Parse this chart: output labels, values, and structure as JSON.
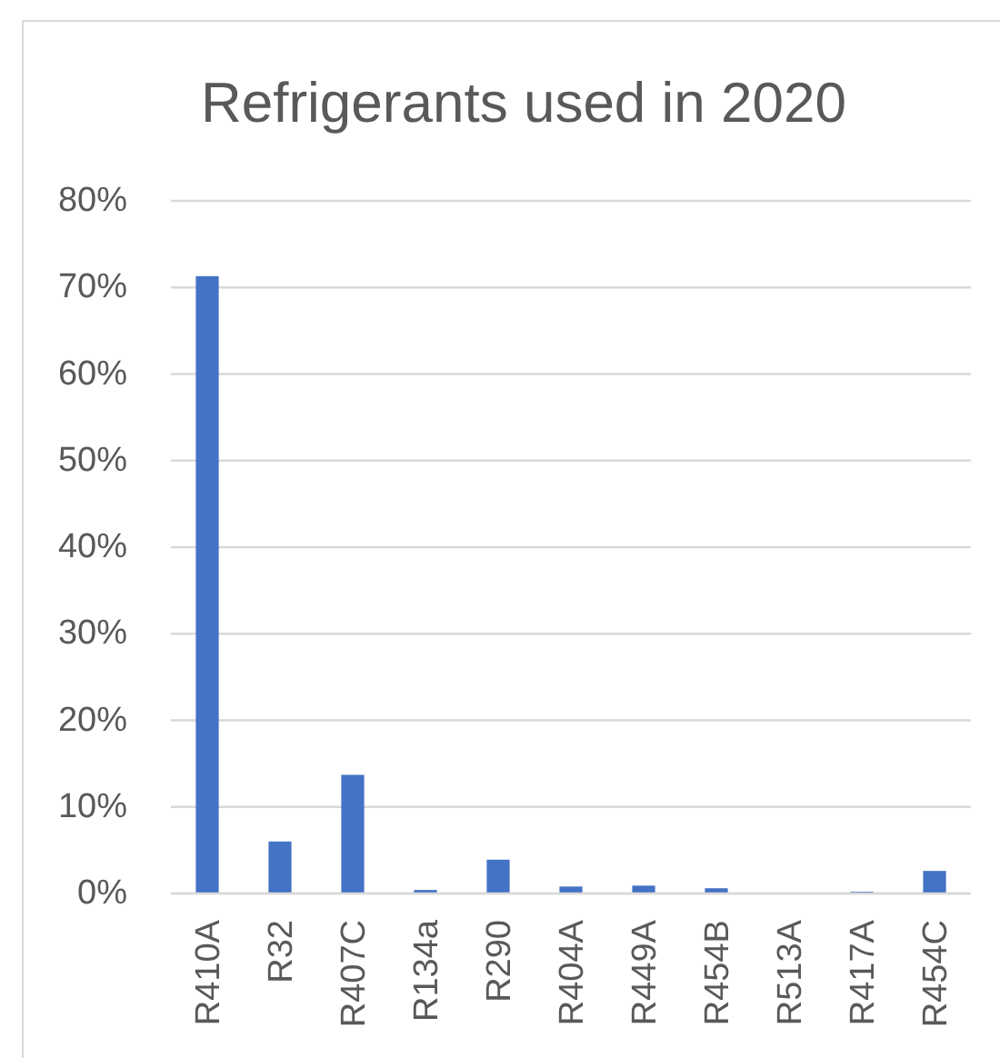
{
  "chart_data": {
    "type": "bar",
    "title": "Refrigerants used in 2020",
    "categories": [
      "R410A",
      "R32",
      "R407C",
      "R134a",
      "R290",
      "R404A",
      "R449A",
      "R454B",
      "R513A",
      "R417A",
      "R454C"
    ],
    "values": [
      71.2,
      5.9,
      13.6,
      0.3,
      3.8,
      0.7,
      0.8,
      0.5,
      0,
      0.1,
      2.5
    ],
    "color": "#4472c4",
    "ylim": [
      0,
      80
    ],
    "yticks": [
      {
        "value": 0,
        "label": "0%"
      },
      {
        "value": 10,
        "label": "10%"
      },
      {
        "value": 20,
        "label": "20%"
      },
      {
        "value": 30,
        "label": "30%"
      },
      {
        "value": 40,
        "label": "40%"
      },
      {
        "value": 50,
        "label": "50%"
      },
      {
        "value": 60,
        "label": "60%"
      },
      {
        "value": 70,
        "label": "70%"
      },
      {
        "value": 80,
        "label": "80%"
      }
    ],
    "grid": "y"
  }
}
